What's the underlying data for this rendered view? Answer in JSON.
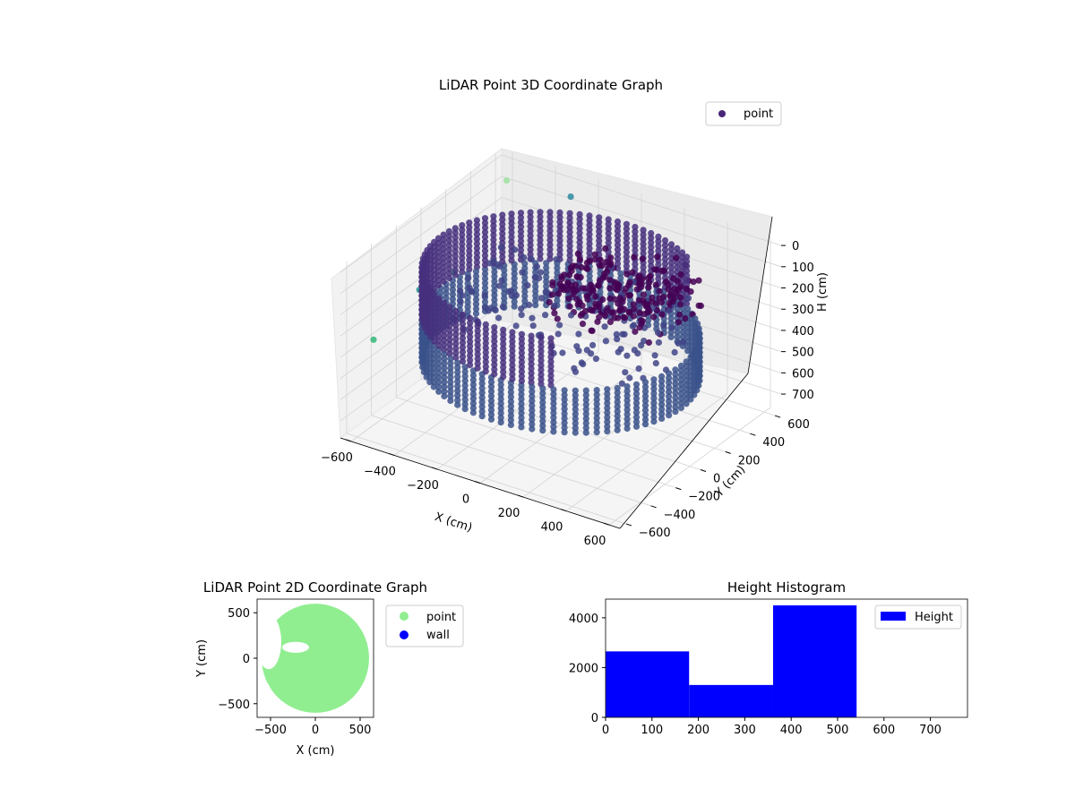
{
  "chart_data": [
    {
      "type": "scatter",
      "projection": "3d",
      "title": "LiDAR Point 3D Coordinate Graph",
      "xlabel": "X (cm)",
      "ylabel": "Y (cm)",
      "zlabel": "H (cm)",
      "xlim": [
        -650,
        650
      ],
      "ylim": [
        -650,
        650
      ],
      "zlim": [
        780,
        -30
      ],
      "zaxis_inverted": true,
      "xticks": [
        "−600",
        "−400",
        "−200",
        "0",
        "200",
        "400",
        "600"
      ],
      "yticks": [
        "−600",
        "−400",
        "−200",
        "0",
        "200",
        "400",
        "600"
      ],
      "zticks": [
        "0",
        "100",
        "200",
        "300",
        "400",
        "500",
        "600",
        "700"
      ],
      "grid": true,
      "colormap": "viridis",
      "legend": {
        "placement": "upper-right",
        "entries": [
          {
            "label": "point",
            "color": "#482677"
          }
        ]
      },
      "point_groups": [
        {
          "kind": "ring",
          "radius": 560,
          "h_from": 320,
          "h_to": 520,
          "theta_from": 0,
          "theta_to": 360,
          "samples": 80,
          "color": "#3b528b"
        },
        {
          "kind": "ring",
          "radius": 560,
          "h_from": 80,
          "h_to": 300,
          "theta_from": 55,
          "theta_to": 300,
          "samples": 60,
          "color": "#46307e"
        },
        {
          "kind": "cluster",
          "x_range": [
            -100,
            400
          ],
          "y_range": [
            0,
            500
          ],
          "h_range": [
            120,
            320
          ],
          "count": 220,
          "color": "#440154"
        },
        {
          "kind": "cluster",
          "x_range": [
            -450,
            450
          ],
          "y_range": [
            -200,
            400
          ],
          "h_range": [
            200,
            420
          ],
          "count": 140,
          "color": "#414487"
        },
        {
          "kind": "outlier",
          "x": -640,
          "y": -400,
          "h": 420,
          "color": "#35b779"
        },
        {
          "kind": "outlier",
          "x": -600,
          "y": -100,
          "h": 300,
          "color": "#21918c"
        },
        {
          "kind": "outlier",
          "x": -640,
          "y": 250,
          "h": 380,
          "color": "#2a9d7c"
        },
        {
          "kind": "outlier",
          "x": -540,
          "y": 500,
          "h": 20,
          "color": "#9de2a0"
        },
        {
          "kind": "outlier",
          "x": -300,
          "y": 600,
          "h": 60,
          "color": "#2c8aa0"
        }
      ]
    },
    {
      "type": "scatter",
      "title": "LiDAR Point 2D Coordinate Graph",
      "xlabel": "X (cm)",
      "ylabel": "Y (cm)",
      "xlim": [
        -650,
        650
      ],
      "ylim": [
        -650,
        650
      ],
      "xticks": [
        -500,
        0,
        500
      ],
      "yticks": [
        -500,
        0,
        500
      ],
      "legend": {
        "placement": "outside-right",
        "entries": [
          {
            "label": "point",
            "color": "#90ee90"
          },
          {
            "label": "wall",
            "color": "#0000ff"
          }
        ]
      },
      "series": [
        {
          "name": "point",
          "color": "#90ee90",
          "shape": "filled-disc",
          "center": [
            0,
            0
          ],
          "radius": 600,
          "gaps": [
            {
              "x": -520,
              "y": 180,
              "rx": 140,
              "ry": 300
            },
            {
              "x": -220,
              "y": 120,
              "rx": 150,
              "ry": 60
            },
            {
              "x": -560,
              "y": -430,
              "rx": 70,
              "ry": 170
            }
          ]
        },
        {
          "name": "wall",
          "color": "#0000ff",
          "values": []
        }
      ]
    },
    {
      "type": "bar",
      "title": "Height Histogram",
      "xlabel": "",
      "ylabel": "",
      "xlim": [
        0,
        780
      ],
      "ylim": [
        0,
        4750
      ],
      "xticks": [
        0,
        100,
        200,
        300,
        400,
        500,
        600,
        700
      ],
      "yticks": [
        0,
        2000,
        4000
      ],
      "legend": {
        "placement": "upper-right",
        "entries": [
          {
            "label": "Height",
            "color": "#0000ff"
          }
        ]
      },
      "series": [
        {
          "name": "Height",
          "color": "#0000ff",
          "bins": [
            0,
            180,
            361,
            541,
            722
          ],
          "values": [
            2650,
            1300,
            4500,
            0
          ]
        }
      ]
    }
  ]
}
